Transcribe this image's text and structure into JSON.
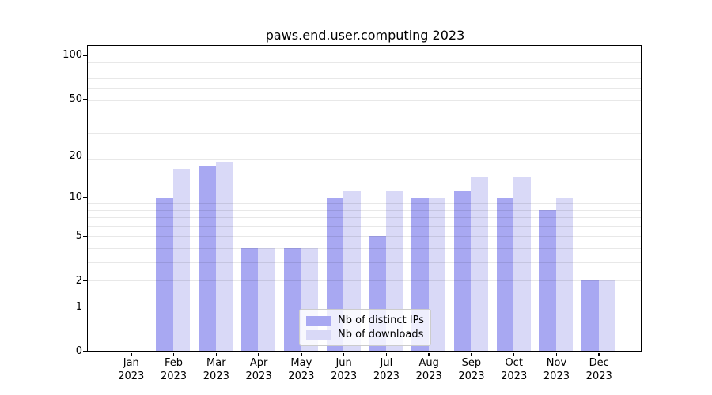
{
  "chart_data": {
    "type": "bar",
    "title": "paws.end.user.computing 2023",
    "categories": [
      "Jan",
      "Feb",
      "Mar",
      "Apr",
      "May",
      "Jun",
      "Jul",
      "Aug",
      "Sep",
      "Oct",
      "Nov",
      "Dec"
    ],
    "year_label": "2023",
    "series": [
      {
        "name": "Nb of distinct IPs",
        "color": "#a8a8f2",
        "values": [
          0,
          10,
          17,
          4,
          4,
          10,
          5,
          10,
          11,
          10,
          8,
          2
        ]
      },
      {
        "name": "Nb of downloads",
        "color": "#d9d9f7",
        "values": [
          0,
          16,
          18,
          4,
          4,
          11,
          11,
          10,
          14,
          14,
          10,
          2
        ]
      }
    ],
    "y_axis": {
      "scale": "log1p",
      "tick_values": [
        0,
        1,
        2,
        5,
        10,
        20,
        50,
        100
      ],
      "tick_labels": [
        "0",
        "1",
        "2",
        "5",
        "10",
        "20",
        "50",
        "100"
      ],
      "range_top_value": 114
    },
    "grid": {
      "major_values": [
        1,
        10,
        100
      ],
      "minor_values": [
        2,
        3,
        4,
        5,
        6,
        7,
        8,
        9,
        19,
        29,
        39,
        49,
        59,
        69,
        79,
        89
      ]
    },
    "legend": {
      "position": "lower center",
      "entries": [
        "Nb of distinct IPs",
        "Nb of downloads"
      ]
    }
  }
}
